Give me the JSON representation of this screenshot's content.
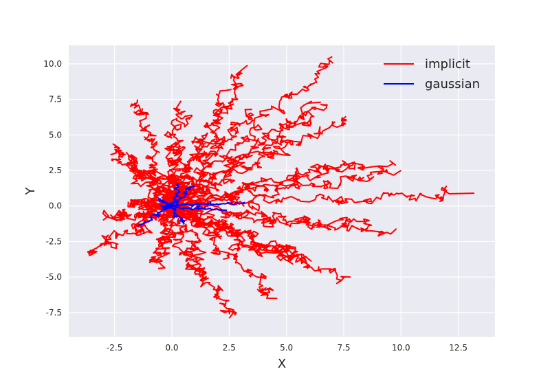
{
  "chart_data": {
    "type": "line",
    "title": "",
    "xlabel": "X",
    "ylabel": "Y",
    "xlim": [
      -4.5,
      14.1
    ],
    "ylim": [
      -9.2,
      11.3
    ],
    "xticks": [
      -2.5,
      0.0,
      2.5,
      5.0,
      7.5,
      10.0,
      12.5
    ],
    "yticks": [
      -7.5,
      -5.0,
      -2.5,
      0.0,
      2.5,
      5.0,
      7.5,
      10.0
    ],
    "xtick_labels": [
      "-2.5",
      "0.0",
      "2.5",
      "5.0",
      "7.5",
      "10.0",
      "12.5"
    ],
    "ytick_labels": [
      "-7.5",
      "-5.0",
      "-2.5",
      "0.0",
      "2.5",
      "5.0",
      "7.5",
      "10.0"
    ],
    "grid": true,
    "legend_position": "top-right",
    "background": "#eaeaf2",
    "series": [
      {
        "name": "implicit",
        "color": "#ff0000",
        "trajectory_endpoints": [
          [
            13.2,
            0.9
          ],
          [
            7.0,
            10.5
          ],
          [
            3.3,
            9.9
          ],
          [
            -1.5,
            7.5
          ],
          [
            -3.6,
            -3.5
          ],
          [
            -3.0,
            -1.0
          ],
          [
            2.5,
            -7.9
          ],
          [
            7.8,
            -5.0
          ],
          [
            10.0,
            2.5
          ],
          [
            6.8,
            7.1
          ],
          [
            7.6,
            6.3
          ],
          [
            8.5,
            -1.6
          ],
          [
            5.9,
            -4.1
          ],
          [
            1.3,
            -5.3
          ],
          [
            -2.0,
            3.8
          ],
          [
            0.4,
            7.4
          ],
          [
            8.0,
            3.1
          ],
          [
            9.5,
            3.2
          ],
          [
            6.5,
            7.3
          ],
          [
            -1.9,
            0.3
          ],
          [
            -2.5,
            4.3
          ],
          [
            9.8,
            -1.6
          ],
          [
            4.6,
            -6.5
          ],
          [
            -0.6,
            -4.4
          ],
          [
            0.9,
            1.1
          ],
          [
            6.1,
            -3.9
          ],
          [
            3.5,
            6.8
          ],
          [
            0.2,
            4.5
          ],
          [
            2.6,
            8.2
          ],
          [
            4.8,
            -3.5
          ]
        ]
      },
      {
        "name": "gaussian",
        "color": "#0000ff",
        "trajectory_endpoints": [
          [
            -1.5,
            -1.4
          ],
          [
            3.2,
            0.25
          ],
          [
            1.0,
            1.4
          ],
          [
            -0.6,
            0.5
          ],
          [
            0.5,
            -1.3
          ],
          [
            0.3,
            1.5
          ],
          [
            2.4,
            -0.3
          ],
          [
            -0.4,
            -0.1
          ]
        ]
      }
    ]
  }
}
